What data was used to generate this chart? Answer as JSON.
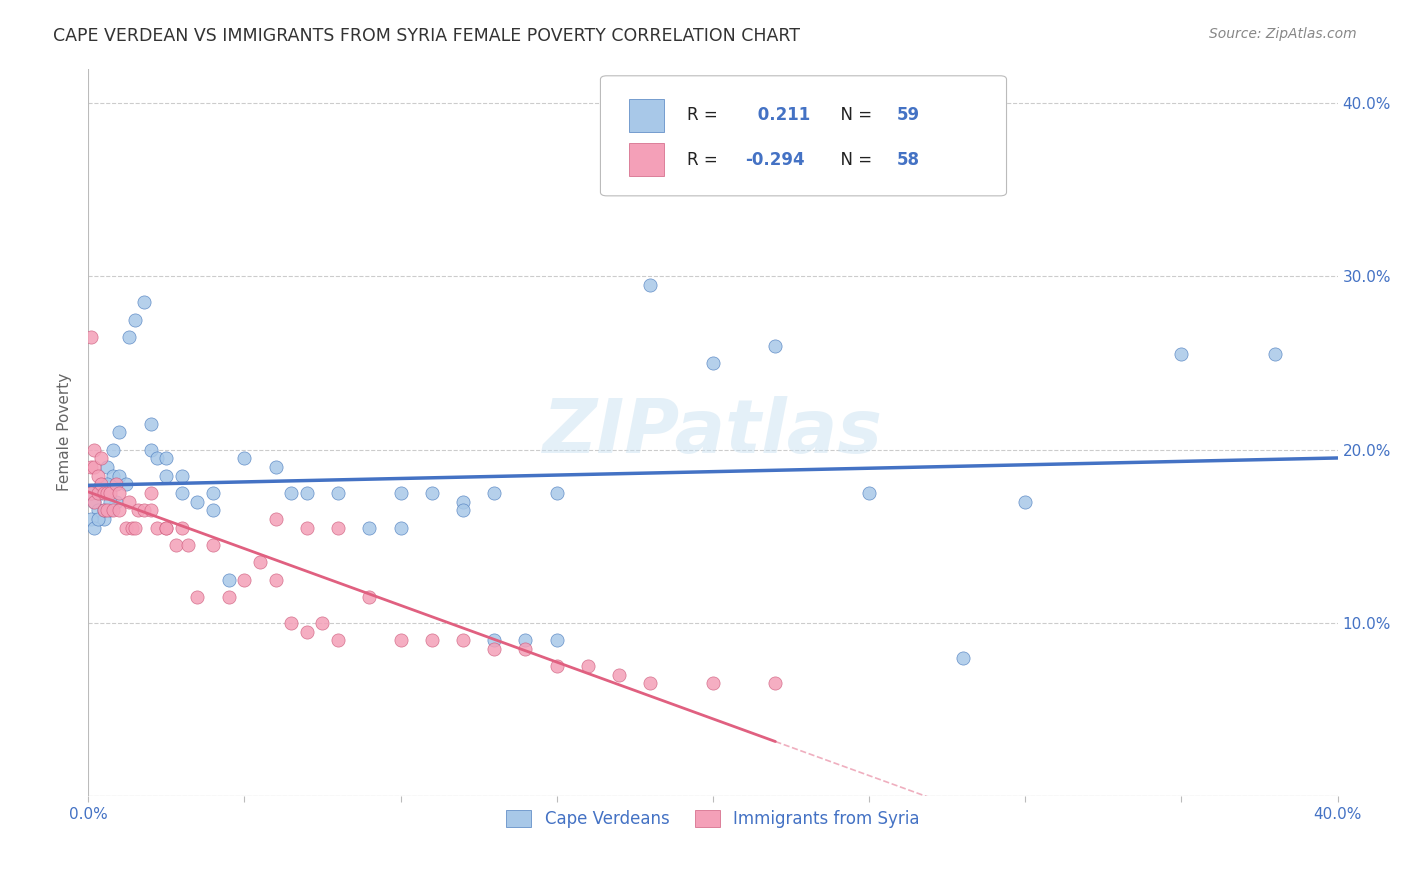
{
  "title": "CAPE VERDEAN VS IMMIGRANTS FROM SYRIA FEMALE POVERTY CORRELATION CHART",
  "source": "Source: ZipAtlas.com",
  "ylabel": "Female Poverty",
  "ytick_vals": [
    0.0,
    0.1,
    0.2,
    0.3,
    0.4
  ],
  "ytick_labels": [
    "",
    "10.0%",
    "20.0%",
    "30.0%",
    "40.0%"
  ],
  "xtick_vals": [
    0.0,
    0.05,
    0.1,
    0.15,
    0.2,
    0.25,
    0.3,
    0.35,
    0.4
  ],
  "xtick_labels": [
    "0.0%",
    "",
    "",
    "",
    "",
    "",
    "",
    "",
    "40.0%"
  ],
  "watermark": "ZIPatlas",
  "legend_label1": "Cape Verdeans",
  "legend_label2": "Immigrants from Syria",
  "R1": 0.211,
  "N1": 59,
  "R2": -0.294,
  "N2": 58,
  "color_blue": "#a8c8e8",
  "color_pink": "#f4a0b8",
  "edge_blue": "#5080c0",
  "edge_pink": "#d06080",
  "line_blue": "#4472c4",
  "line_pink": "#e06080",
  "text_blue": "#4472c4",
  "text_black": "#222222",
  "background_color": "#ffffff",
  "cv_x": [
    0.002,
    0.003,
    0.004,
    0.005,
    0.006,
    0.007,
    0.008,
    0.009,
    0.001,
    0.001,
    0.002,
    0.003,
    0.004,
    0.005,
    0.006,
    0.007,
    0.008,
    0.009,
    0.01,
    0.01,
    0.012,
    0.013,
    0.015,
    0.018,
    0.02,
    0.02,
    0.022,
    0.025,
    0.025,
    0.03,
    0.03,
    0.035,
    0.04,
    0.04,
    0.045,
    0.05,
    0.06,
    0.065,
    0.07,
    0.08,
    0.09,
    0.1,
    0.11,
    0.12,
    0.13,
    0.14,
    0.15,
    0.18,
    0.2,
    0.22,
    0.25,
    0.28,
    0.3,
    0.35,
    0.38,
    0.13,
    0.15,
    0.1,
    0.12
  ],
  "cv_y": [
    0.17,
    0.165,
    0.18,
    0.16,
    0.19,
    0.165,
    0.185,
    0.17,
    0.16,
    0.175,
    0.155,
    0.16,
    0.175,
    0.165,
    0.18,
    0.17,
    0.2,
    0.18,
    0.21,
    0.185,
    0.18,
    0.265,
    0.275,
    0.285,
    0.2,
    0.215,
    0.195,
    0.195,
    0.185,
    0.185,
    0.175,
    0.17,
    0.165,
    0.175,
    0.125,
    0.195,
    0.19,
    0.175,
    0.175,
    0.175,
    0.155,
    0.175,
    0.175,
    0.17,
    0.175,
    0.09,
    0.175,
    0.295,
    0.25,
    0.26,
    0.175,
    0.08,
    0.17,
    0.255,
    0.255,
    0.09,
    0.09,
    0.155,
    0.165
  ],
  "sy_x": [
    0.001,
    0.001,
    0.001,
    0.002,
    0.002,
    0.002,
    0.003,
    0.003,
    0.004,
    0.004,
    0.005,
    0.005,
    0.006,
    0.006,
    0.007,
    0.008,
    0.009,
    0.01,
    0.01,
    0.012,
    0.013,
    0.014,
    0.015,
    0.016,
    0.018,
    0.02,
    0.02,
    0.022,
    0.025,
    0.025,
    0.028,
    0.03,
    0.032,
    0.035,
    0.04,
    0.045,
    0.05,
    0.055,
    0.06,
    0.065,
    0.07,
    0.075,
    0.08,
    0.09,
    0.1,
    0.11,
    0.12,
    0.13,
    0.14,
    0.15,
    0.16,
    0.17,
    0.18,
    0.2,
    0.22,
    0.06,
    0.07,
    0.08
  ],
  "sy_y": [
    0.265,
    0.19,
    0.175,
    0.2,
    0.19,
    0.17,
    0.185,
    0.175,
    0.195,
    0.18,
    0.175,
    0.165,
    0.175,
    0.165,
    0.175,
    0.165,
    0.18,
    0.175,
    0.165,
    0.155,
    0.17,
    0.155,
    0.155,
    0.165,
    0.165,
    0.165,
    0.175,
    0.155,
    0.155,
    0.155,
    0.145,
    0.155,
    0.145,
    0.115,
    0.145,
    0.115,
    0.125,
    0.135,
    0.125,
    0.1,
    0.095,
    0.1,
    0.09,
    0.115,
    0.09,
    0.09,
    0.09,
    0.085,
    0.085,
    0.075,
    0.075,
    0.07,
    0.065,
    0.065,
    0.065,
    0.16,
    0.155,
    0.155
  ]
}
